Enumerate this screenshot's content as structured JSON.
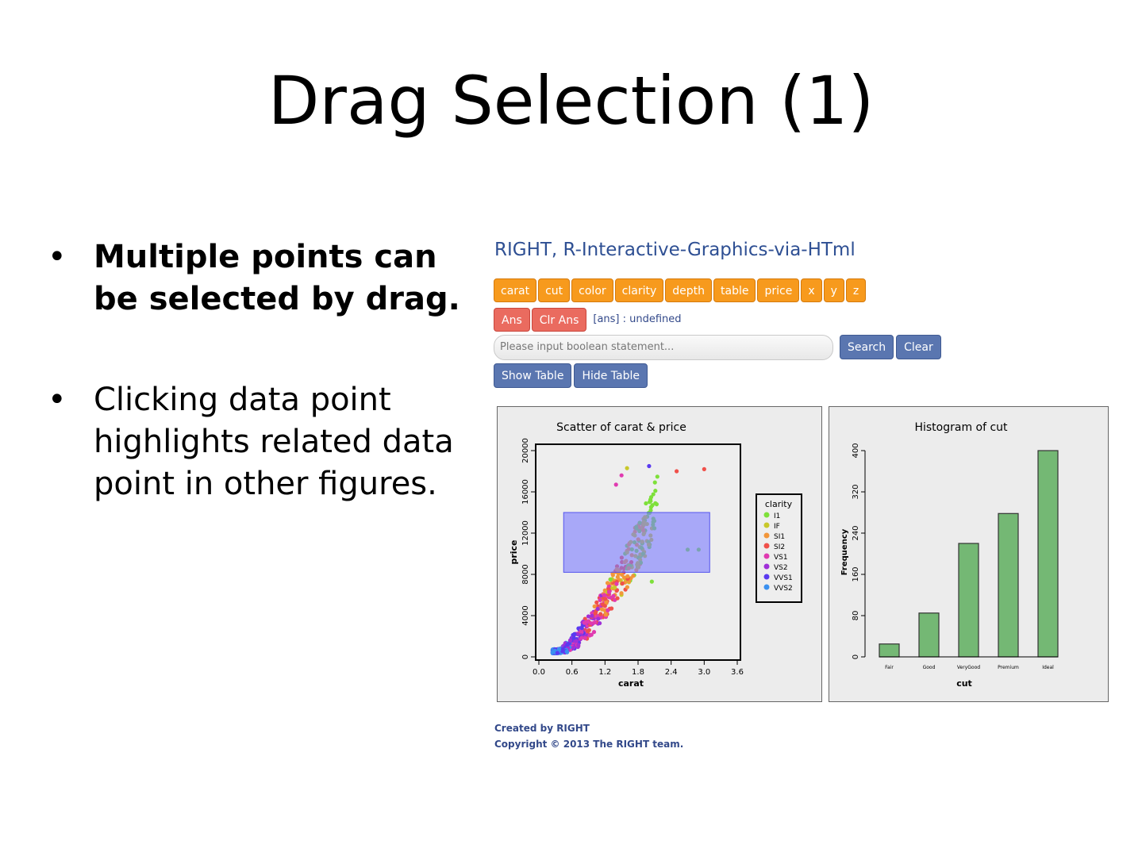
{
  "slide": {
    "title": "Drag Selection (1)",
    "bullets": [
      {
        "symbol": "•",
        "text": "Multiple points can be selected by drag.",
        "bold": true
      },
      {
        "symbol": "•",
        "text": "Clicking data point highlights related data point in other figures.",
        "bold": false
      }
    ]
  },
  "app": {
    "title": "RIGHT, R-Interactive-Graphics-via-HTml",
    "variable_buttons": [
      "carat",
      "cut",
      "color",
      "clarity",
      "depth",
      "table",
      "price",
      "x",
      "y",
      "z"
    ],
    "ans_button": "Ans",
    "clr_ans_button": "Clr Ans",
    "ans_status": "[ans] : undefined",
    "search_placeholder": "Please input boolean statement...",
    "search_button": "Search",
    "clear_button": "Clear",
    "show_table_button": "Show Table",
    "hide_table_button": "Hide Table",
    "footer_line1": "Created by RIGHT",
    "footer_line2": "Copyright © 2013 The RIGHT team.",
    "colors": {
      "orange": "#f79a1d",
      "red": "#ea6b5f",
      "blue": "#5a76b0",
      "title": "#2e4f93"
    }
  },
  "chart_data": [
    {
      "type": "scatter",
      "title": "Scatter of carat & price",
      "xlabel": "carat",
      "ylabel": "price",
      "xlim": [
        0,
        3.6
      ],
      "ylim": [
        0,
        20000
      ],
      "xticks": [
        "0.0",
        "0.6",
        "1.2",
        "1.8",
        "2.4",
        "3.0",
        "3.6"
      ],
      "yticks": [
        "0",
        "4000",
        "8000",
        "12000",
        "16000",
        "20000"
      ],
      "legend_title": "clarity",
      "legend_position": "right",
      "legend": [
        {
          "name": "I1",
          "color": "#7ee03a"
        },
        {
          "name": "IF",
          "color": "#c8c82a"
        },
        {
          "name": "SI1",
          "color": "#f2963a"
        },
        {
          "name": "SI2",
          "color": "#f0504a"
        },
        {
          "name": "VS1",
          "color": "#e03ab0"
        },
        {
          "name": "VS2",
          "color": "#a030d8"
        },
        {
          "name": "VVS1",
          "color": "#5a3af0"
        },
        {
          "name": "VVS2",
          "color": "#3a90f0"
        }
      ],
      "selection": {
        "x": [
          0.45,
          3.1
        ],
        "y": [
          8200,
          14000
        ]
      }
    },
    {
      "type": "bar",
      "title": "Histogram of cut",
      "xlabel": "cut",
      "ylabel": "Frequency",
      "categories": [
        "Fair",
        "Good",
        "VeryGood",
        "Premium",
        "Ideal"
      ],
      "values": [
        25,
        85,
        220,
        278,
        400
      ],
      "ylim": [
        0,
        400
      ],
      "yticks": [
        "0",
        "80",
        "160",
        "240",
        "320",
        "400"
      ],
      "bar_color": "#74b874"
    }
  ]
}
